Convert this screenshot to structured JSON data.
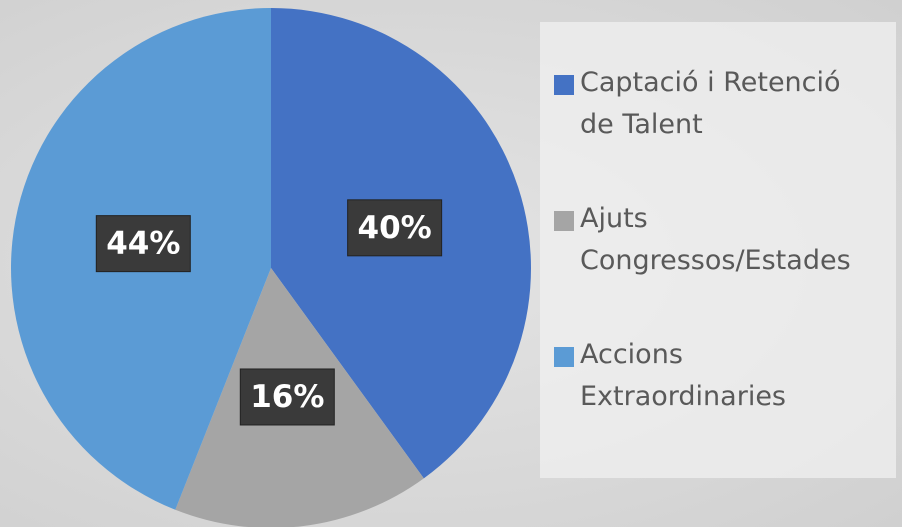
{
  "chart_data": {
    "type": "pie",
    "categories": [
      "Captació i Retenció de Talent",
      "Ajuts Congressos/Estades",
      "Accions Extraordinaries"
    ],
    "values": [
      40,
      16,
      44
    ],
    "value_labels": [
      "40%",
      "16%",
      "44%"
    ],
    "colors": [
      "#4472c4",
      "#a5a5a5",
      "#5b9bd5"
    ],
    "legend": "right"
  }
}
